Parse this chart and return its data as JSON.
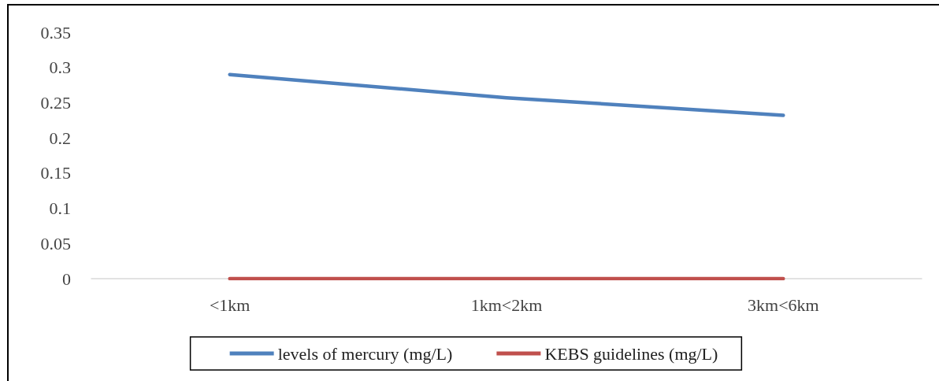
{
  "chart_data": {
    "type": "line",
    "categories": [
      "<1km",
      "1km<2km",
      "3km<6km"
    ],
    "series": [
      {
        "name": "levels of mercury (mg/L)",
        "color": "#4f81bd",
        "values": [
          0.29,
          0.257,
          0.232
        ]
      },
      {
        "name": "KEBS guidelines (mg/L)",
        "color": "#c0504d",
        "values": [
          0,
          0,
          0
        ]
      }
    ],
    "ylim": [
      0,
      0.35
    ],
    "yticks": [
      0,
      0.05,
      0.1,
      0.15,
      0.2,
      0.25,
      0.3,
      0.35
    ],
    "grid": false,
    "legend": "bottom",
    "marker": "none",
    "line_style": "solid"
  }
}
